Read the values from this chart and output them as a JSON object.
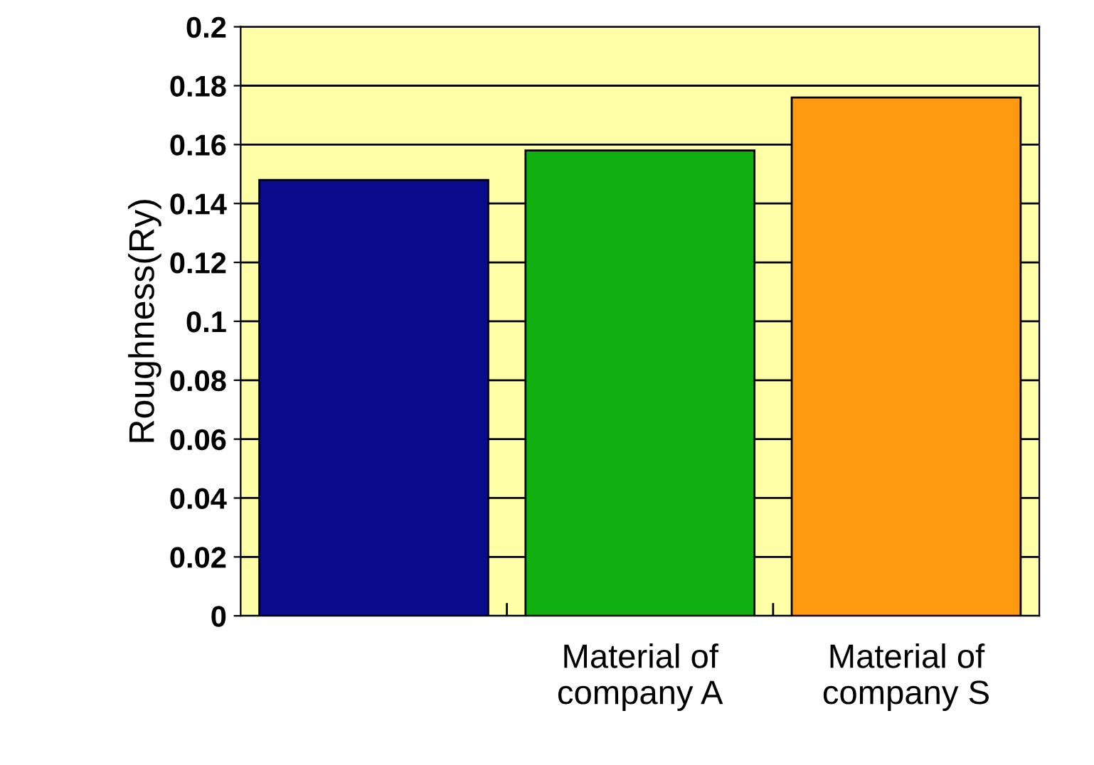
{
  "chart_data": {
    "type": "bar",
    "ylabel": "Roughness(Ry)",
    "categories": [
      null,
      "Material of\ncompany A",
      "Material of\ncompany S"
    ],
    "values": [
      0.148,
      0.158,
      0.176
    ],
    "colors": [
      "#0a0a8c",
      "#10b010",
      "#ff9a10"
    ],
    "ylim": [
      0,
      0.2
    ],
    "yticks": [
      {
        "value": 0,
        "label": "0"
      },
      {
        "value": 0.02,
        "label": "0.02"
      },
      {
        "value": 0.04,
        "label": "0.04"
      },
      {
        "value": 0.06,
        "label": "0.06"
      },
      {
        "value": 0.08,
        "label": "0.08"
      },
      {
        "value": 0.1,
        "label": "0.1"
      },
      {
        "value": 0.12,
        "label": "0.12"
      },
      {
        "value": 0.14,
        "label": "0.14"
      },
      {
        "value": 0.16,
        "label": "0.16"
      },
      {
        "value": 0.18,
        "label": "0.18"
      },
      {
        "value": 0.2,
        "label": "0.2"
      }
    ],
    "grid": "y"
  }
}
